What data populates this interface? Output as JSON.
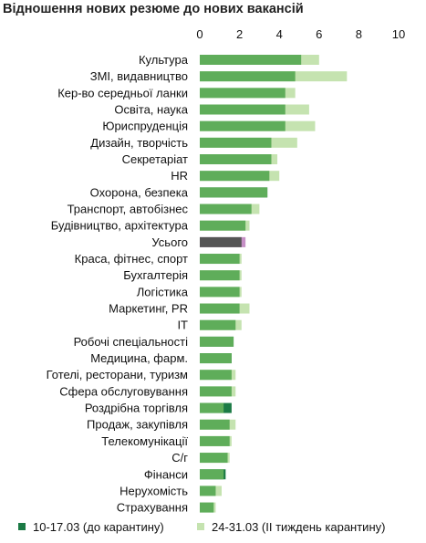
{
  "chart_data": {
    "type": "bar",
    "orientation": "horizontal",
    "title": "Відношення нових резюме до нових вакансій",
    "xlabel": "",
    "ylabel": "",
    "xlim": [
      0,
      10
    ],
    "xticks": [
      0,
      2,
      4,
      6,
      8,
      10
    ],
    "grid": false,
    "legend_position": "bottom",
    "categories": [
      "Культура",
      "ЗМІ, видавництво",
      "Кер-во середньої ланки",
      "Освіта, наука",
      "Юриспруденція",
      "Дизайн, творчість",
      "Секретаріат",
      "HR",
      "Охорона, безпека",
      "Транспорт, автобізнес",
      "Будівництво, архітектура",
      "Усього",
      "Краса, фітнес, спорт",
      "Бухгалтерія",
      "Логістика",
      "Маркетинг, PR",
      "IT",
      "Робочі спеціальності",
      "Медицина, фарм.",
      "Готелі, ресторани, туризм",
      "Сфера обслуговування",
      "Роздрібна торгівля",
      "Продаж, закупівля",
      "Телекомунікації",
      "С/г",
      "Фінанси",
      "Нерухомість",
      "Страхування"
    ],
    "series": [
      {
        "name": "10-17.03 (до карантину)",
        "color": "#1b7a45",
        "values": [
          5.1,
          4.8,
          4.3,
          4.3,
          4.3,
          3.6,
          3.6,
          3.5,
          3.4,
          2.6,
          2.3,
          2.1,
          2.0,
          2.0,
          2.0,
          2.0,
          1.8,
          1.7,
          1.6,
          1.6,
          1.6,
          1.6,
          1.5,
          1.5,
          1.4,
          1.3,
          0.8,
          0.7
        ]
      },
      {
        "name": "24-31.03 (II тиждень карантину)",
        "color": "#c5e3b0",
        "values": [
          6.0,
          7.4,
          4.8,
          5.5,
          5.8,
          4.9,
          3.9,
          4.0,
          3.4,
          3.0,
          2.5,
          2.3,
          2.1,
          2.1,
          2.1,
          2.5,
          2.1,
          1.7,
          1.6,
          1.8,
          1.8,
          1.2,
          1.8,
          1.6,
          1.5,
          1.2,
          1.1,
          0.8
        ]
      }
    ],
    "highlight": {
      "category": "Усього",
      "colors": [
        "#555555",
        "#c690c6"
      ]
    },
    "overlap_color": "#5fad5a"
  }
}
